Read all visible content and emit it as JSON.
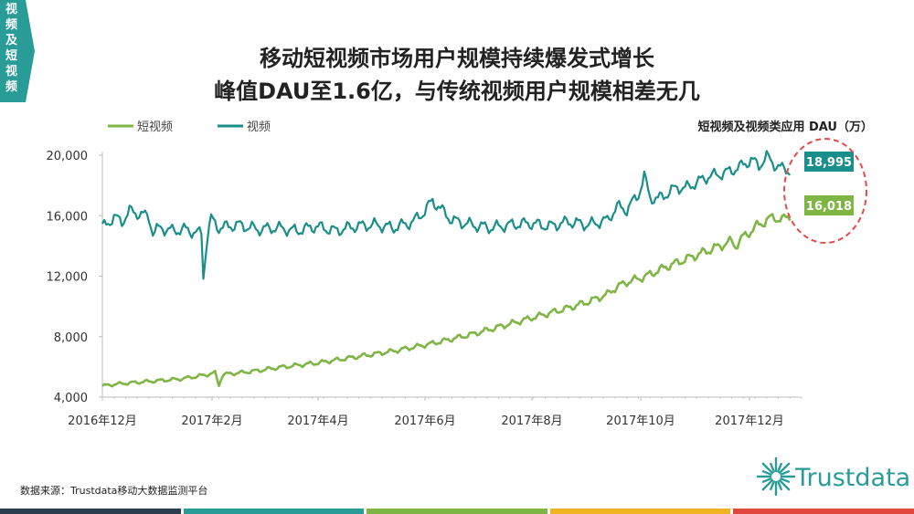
{
  "side_tab": {
    "label": "视频及短视频"
  },
  "title": {
    "line1": "移动短视频市场用户规模持续爆发式增长",
    "line2": "峰值DAU至1.6亿，与传统视频用户规模相差无几"
  },
  "source": "数据来源：Trustdata移动大数据监测平台",
  "logo": {
    "text": "Trustdata",
    "icon": "starburst-logo-icon"
  },
  "colors": {
    "accent": "#2a9c98",
    "short_video": "#7fb545",
    "video": "#1a8f8a",
    "highlight": "#e34a4a"
  },
  "chart_data": {
    "type": "line",
    "unit_label": "短视频及视频类应用 DAU（万）",
    "x_tick_labels": [
      "2016年12月",
      "2017年2月",
      "2017年4月",
      "2017年6月",
      "2017年8月",
      "2017年10月",
      "2017年12月"
    ],
    "ylim": [
      4000,
      20000
    ],
    "y_ticks": [
      4000,
      8000,
      12000,
      16000,
      20000
    ],
    "y_tick_labels": [
      "4,000",
      "8,000",
      "12,000",
      "16,000",
      "20,000"
    ],
    "legend_position": "top-left",
    "series": [
      {
        "name": "短视频",
        "color": "#7fb545",
        "final_label": "16,018",
        "final_value": 16018,
        "points": [
          [
            0,
            4750
          ],
          [
            10,
            4900
          ],
          [
            20,
            5000
          ],
          [
            30,
            5100
          ],
          [
            40,
            5200
          ],
          [
            50,
            5400
          ],
          [
            58,
            5600
          ],
          [
            60,
            4800
          ],
          [
            62,
            5500
          ],
          [
            70,
            5600
          ],
          [
            80,
            5750
          ],
          [
            90,
            5950
          ],
          [
            100,
            6100
          ],
          [
            110,
            6250
          ],
          [
            120,
            6450
          ],
          [
            130,
            6650
          ],
          [
            140,
            6850
          ],
          [
            150,
            7050
          ],
          [
            160,
            7300
          ],
          [
            170,
            7550
          ],
          [
            180,
            7850
          ],
          [
            190,
            8150
          ],
          [
            200,
            8500
          ],
          [
            210,
            8850
          ],
          [
            220,
            9200
          ],
          [
            230,
            9550
          ],
          [
            240,
            9900
          ],
          [
            250,
            10300
          ],
          [
            260,
            10800
          ],
          [
            265,
            11300
          ],
          [
            270,
            11600
          ],
          [
            280,
            12000
          ],
          [
            290,
            12600
          ],
          [
            300,
            13100
          ],
          [
            310,
            13600
          ],
          [
            320,
            14100
          ],
          [
            324,
            14300
          ],
          [
            326,
            14000
          ],
          [
            330,
            14600
          ],
          [
            338,
            15400
          ],
          [
            342,
            15700
          ],
          [
            346,
            15900
          ],
          [
            350,
            15700
          ],
          [
            354,
            16018
          ]
        ]
      },
      {
        "name": "视频",
        "color": "#1a8f8a",
        "final_label": "18,995",
        "final_value": 18995,
        "points": [
          [
            0,
            15200
          ],
          [
            6,
            15900
          ],
          [
            10,
            15600
          ],
          [
            14,
            16300
          ],
          [
            20,
            16100
          ],
          [
            24,
            15900
          ],
          [
            26,
            14900
          ],
          [
            30,
            15200
          ],
          [
            36,
            15000
          ],
          [
            42,
            15100
          ],
          [
            48,
            14900
          ],
          [
            51,
            14800
          ],
          [
            52,
            12000
          ],
          [
            54,
            14600
          ],
          [
            56,
            15800
          ],
          [
            60,
            15200
          ],
          [
            70,
            15400
          ],
          [
            80,
            15100
          ],
          [
            90,
            15200
          ],
          [
            100,
            15000
          ],
          [
            110,
            15300
          ],
          [
            120,
            15000
          ],
          [
            130,
            15300
          ],
          [
            140,
            15400
          ],
          [
            150,
            15200
          ],
          [
            160,
            15600
          ],
          [
            166,
            16300
          ],
          [
            170,
            17000
          ],
          [
            176,
            16200
          ],
          [
            180,
            15700
          ],
          [
            190,
            15400
          ],
          [
            200,
            15200
          ],
          [
            210,
            15400
          ],
          [
            220,
            15500
          ],
          [
            230,
            15300
          ],
          [
            240,
            15600
          ],
          [
            250,
            15400
          ],
          [
            260,
            15700
          ],
          [
            265,
            16600
          ],
          [
            270,
            16400
          ],
          [
            276,
            17400
          ],
          [
            279,
            18600
          ],
          [
            282,
            17200
          ],
          [
            286,
            17100
          ],
          [
            290,
            17400
          ],
          [
            296,
            17900
          ],
          [
            300,
            17800
          ],
          [
            306,
            18200
          ],
          [
            312,
            18600
          ],
          [
            320,
            18800
          ],
          [
            328,
            19200
          ],
          [
            334,
            19700
          ],
          [
            338,
            19300
          ],
          [
            342,
            19900
          ],
          [
            346,
            19400
          ],
          [
            350,
            19100
          ],
          [
            354,
            18995
          ]
        ]
      }
    ]
  }
}
